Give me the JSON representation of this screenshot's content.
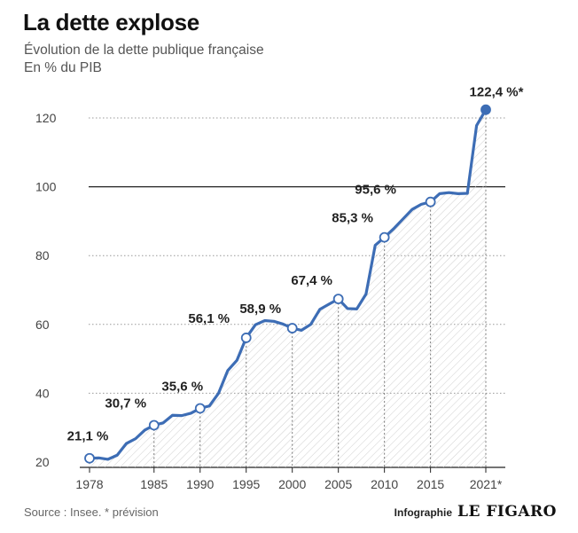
{
  "header": {
    "title": "La dette explose",
    "subtitle": "Évolution de la dette publique française",
    "unit": "En % du PIB"
  },
  "footer": {
    "source": "Source : Insee. * prévision",
    "credit_label": "Infographie",
    "credit_logo": "LE FIGARO"
  },
  "colors": {
    "line": "#3d6db5",
    "axis": "#222222",
    "grid": "#999999"
  },
  "chart_data": {
    "type": "line",
    "title": "La dette explose",
    "subtitle": "Évolution de la dette publique française",
    "ylabel": "En % du PIB",
    "ylim": [
      20,
      125
    ],
    "xlim": [
      1978,
      2021
    ],
    "y_ticks": [
      20,
      40,
      60,
      80,
      100,
      120
    ],
    "x_ticks": [
      {
        "year": 1978,
        "label": "1978"
      },
      {
        "year": 1985,
        "label": "1985"
      },
      {
        "year": 1990,
        "label": "1990"
      },
      {
        "year": 1995,
        "label": "1995"
      },
      {
        "year": 2000,
        "label": "2000"
      },
      {
        "year": 2005,
        "label": "2005"
      },
      {
        "year": 2010,
        "label": "2010"
      },
      {
        "year": 2015,
        "label": "2015"
      },
      {
        "year": 2021,
        "label": "2021*"
      }
    ],
    "series": [
      {
        "x": [
          1978,
          1979,
          1980,
          1981,
          1982,
          1983,
          1984,
          1985,
          1986,
          1987,
          1988,
          1989,
          1990,
          1991,
          1992,
          1993,
          1994,
          1995,
          1996,
          1997,
          1998,
          1999,
          2000,
          2001,
          2002,
          2003,
          2004,
          2005,
          2006,
          2007,
          2008,
          2009,
          2010,
          2011,
          2012,
          2013,
          2014,
          2015,
          2016,
          2017,
          2018,
          2019,
          2020,
          2021
        ],
        "values": [
          21.1,
          21.2,
          20.8,
          22.0,
          25.4,
          26.8,
          29.3,
          30.7,
          31.4,
          33.6,
          33.5,
          34.2,
          35.6,
          36.3,
          40.0,
          46.6,
          49.6,
          56.1,
          59.9,
          61.1,
          60.9,
          60.1,
          58.9,
          58.3,
          60.0,
          64.4,
          65.9,
          67.4,
          64.6,
          64.5,
          68.8,
          83.0,
          85.3,
          87.8,
          90.6,
          93.4,
          94.9,
          95.6,
          98.0,
          98.3,
          98.0,
          98.1,
          117.8,
          122.4
        ]
      }
    ],
    "annotations": [
      {
        "year": 1978,
        "value": 21.1,
        "label": "21,1 %",
        "marker": "hollow"
      },
      {
        "year": 1985,
        "value": 30.7,
        "label": "30,7 %",
        "marker": "hollow"
      },
      {
        "year": 1990,
        "value": 35.6,
        "label": "35,6 %",
        "marker": "hollow"
      },
      {
        "year": 1995,
        "value": 56.1,
        "label": "56,1 %",
        "marker": "hollow"
      },
      {
        "year": 2000,
        "value": 58.9,
        "label": "58,9 %",
        "marker": "hollow"
      },
      {
        "year": 2005,
        "value": 67.4,
        "label": "67,4 %",
        "marker": "hollow"
      },
      {
        "year": 2010,
        "value": 85.3,
        "label": "85,3 %",
        "marker": "hollow"
      },
      {
        "year": 2015,
        "value": 95.6,
        "label": "95,6 %",
        "marker": "hollow"
      },
      {
        "year": 2021,
        "value": 122.4,
        "label": "122,4 %*",
        "marker": "filled"
      }
    ],
    "grid": true,
    "reference_line": 100,
    "area_fill": "hatched"
  }
}
